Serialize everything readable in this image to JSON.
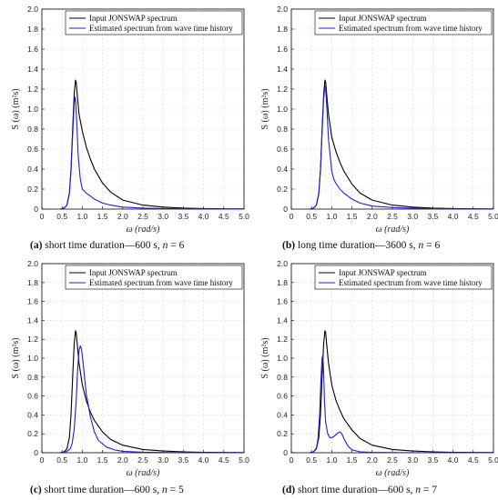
{
  "colors": {
    "input": "#000000",
    "estimated": "#1f1fd6",
    "grid": "#d9d9d9",
    "axis": "#000000"
  },
  "panels": [
    {
      "id": "a",
      "caption": {
        "letter": "(a)",
        "text": "short time duration—600 s,",
        "n_label": "n",
        "n_value": "= 6"
      }
    },
    {
      "id": "b",
      "caption": {
        "letter": "(b)",
        "text": "long time duration—3600 s,",
        "n_label": "n",
        "n_value": "= 6"
      }
    },
    {
      "id": "c",
      "caption": {
        "letter": "(c)",
        "text": "short time duration—600 s,",
        "n_label": "n",
        "n_value": "= 5"
      }
    },
    {
      "id": "d",
      "caption": {
        "letter": "(d)",
        "text": "short time duration—600 s,",
        "n_label": "n",
        "n_value": "= 7"
      }
    }
  ],
  "chart_data": [
    {
      "type": "line",
      "panel": "a",
      "xlabel": "ω (rad/s)",
      "ylabel": "S (ω) (m²s)",
      "xlim": [
        0,
        5
      ],
      "ylim": [
        0,
        2
      ],
      "xticks": [
        "0",
        "0.5",
        "1.0",
        "1.5",
        "2.0",
        "2.5",
        "3.0",
        "3.5",
        "4.0",
        "4.5",
        "5.0"
      ],
      "yticks": [
        "0",
        "0.2",
        "0.4",
        "0.6",
        "0.8",
        "1.0",
        "1.2",
        "1.4",
        "1.6",
        "1.8",
        "2.0"
      ],
      "grid": true,
      "legend_position": "top-right",
      "series": [
        {
          "name": "Input JONSWAP spectrum",
          "color": "#000000",
          "x": [
            0.45,
            0.55,
            0.62,
            0.68,
            0.72,
            0.76,
            0.8,
            0.83,
            0.85,
            0.88,
            0.92,
            1.0,
            1.1,
            1.2,
            1.3,
            1.5,
            1.7,
            2.0,
            2.5,
            3.0,
            3.5,
            4.0,
            4.5,
            5.0
          ],
          "y": [
            0,
            0.01,
            0.04,
            0.16,
            0.4,
            0.78,
            1.15,
            1.29,
            1.27,
            1.12,
            0.95,
            0.78,
            0.62,
            0.5,
            0.4,
            0.26,
            0.17,
            0.09,
            0.04,
            0.02,
            0.01,
            0.005,
            0.003,
            0.002
          ]
        },
        {
          "name": "Estimated spectrum from wave time history",
          "color": "#1f1fd6",
          "x": [
            0.45,
            0.55,
            0.62,
            0.68,
            0.72,
            0.76,
            0.8,
            0.82,
            0.84,
            0.87,
            0.9,
            0.95,
            1.0,
            1.1,
            1.2,
            1.3,
            1.5,
            1.7,
            2.0,
            2.5,
            3.0,
            3.5,
            4.0,
            4.5,
            5.0
          ],
          "y": [
            0,
            0.01,
            0.04,
            0.15,
            0.38,
            0.72,
            1.05,
            1.12,
            1.06,
            0.8,
            0.52,
            0.3,
            0.2,
            0.16,
            0.13,
            0.1,
            0.06,
            0.04,
            0.02,
            0.01,
            0.005,
            0.003,
            0.002,
            0.001,
            0.001
          ]
        }
      ]
    },
    {
      "type": "line",
      "panel": "b",
      "xlabel": "ω (rad/s)",
      "ylabel": "S (ω) (m²s)",
      "xlim": [
        0,
        5
      ],
      "ylim": [
        0,
        2
      ],
      "xticks": [
        "0",
        "0.5",
        "1.0",
        "1.5",
        "2.0",
        "2.5",
        "3.0",
        "3.5",
        "4.0",
        "4.5",
        "5.0"
      ],
      "yticks": [
        "0",
        "0.2",
        "0.4",
        "0.6",
        "0.8",
        "1.0",
        "1.2",
        "1.4",
        "1.6",
        "1.8",
        "2.0"
      ],
      "grid": true,
      "legend_position": "top-right",
      "series": [
        {
          "name": "Input JONSWAP spectrum",
          "color": "#000000",
          "x": [
            0.45,
            0.55,
            0.62,
            0.68,
            0.72,
            0.76,
            0.8,
            0.83,
            0.85,
            0.88,
            0.92,
            1.0,
            1.1,
            1.2,
            1.3,
            1.5,
            1.7,
            2.0,
            2.5,
            3.0,
            3.5,
            4.0,
            4.5,
            5.0
          ],
          "y": [
            0,
            0.01,
            0.04,
            0.16,
            0.4,
            0.78,
            1.15,
            1.29,
            1.27,
            1.12,
            0.95,
            0.72,
            0.58,
            0.47,
            0.38,
            0.25,
            0.16,
            0.09,
            0.04,
            0.02,
            0.01,
            0.005,
            0.003,
            0.002
          ]
        },
        {
          "name": "Estimated spectrum from wave time history",
          "color": "#1f1fd6",
          "x": [
            0.45,
            0.55,
            0.62,
            0.68,
            0.72,
            0.76,
            0.8,
            0.83,
            0.85,
            0.88,
            0.92,
            1.0,
            1.05,
            1.1,
            1.2,
            1.3,
            1.5,
            1.7,
            2.0,
            2.5,
            3.0,
            3.5,
            4.0,
            4.5,
            5.0
          ],
          "y": [
            0,
            0.01,
            0.04,
            0.15,
            0.38,
            0.75,
            1.1,
            1.23,
            1.2,
            1.0,
            0.7,
            0.38,
            0.3,
            0.26,
            0.2,
            0.16,
            0.1,
            0.06,
            0.03,
            0.015,
            0.008,
            0.004,
            0.002,
            0.001,
            0.001
          ]
        }
      ]
    },
    {
      "type": "line",
      "panel": "c",
      "xlabel": "ω (rad/s)",
      "ylabel": "S (ω) (m²s)",
      "xlim": [
        0,
        5
      ],
      "ylim": [
        0,
        2
      ],
      "xticks": [
        "0",
        "0.5",
        "1.0",
        "1.5",
        "2.0",
        "2.5",
        "3.0",
        "3.5",
        "4.0",
        "4.5",
        "5.0"
      ],
      "yticks": [
        "0",
        "0.2",
        "0.4",
        "0.6",
        "0.8",
        "1.0",
        "1.2",
        "1.4",
        "1.6",
        "1.8",
        "2.0"
      ],
      "grid": true,
      "legend_position": "top-right",
      "series": [
        {
          "name": "Input JONSWAP spectrum",
          "color": "#000000",
          "x": [
            0.45,
            0.55,
            0.62,
            0.68,
            0.72,
            0.76,
            0.8,
            0.83,
            0.85,
            0.88,
            0.92,
            1.0,
            1.1,
            1.2,
            1.3,
            1.5,
            1.7,
            2.0,
            2.5,
            3.0,
            3.5,
            4.0,
            4.5,
            5.0
          ],
          "y": [
            0,
            0.01,
            0.04,
            0.16,
            0.4,
            0.78,
            1.15,
            1.29,
            1.27,
            1.12,
            0.95,
            0.72,
            0.55,
            0.43,
            0.34,
            0.22,
            0.14,
            0.08,
            0.035,
            0.018,
            0.01,
            0.005,
            0.003,
            0.002
          ]
        },
        {
          "name": "Estimated spectrum from wave time history",
          "color": "#1f1fd6",
          "x": [
            0.5,
            0.6,
            0.7,
            0.75,
            0.8,
            0.85,
            0.88,
            0.92,
            0.95,
            0.98,
            1.02,
            1.06,
            1.1,
            1.2,
            1.3,
            1.4,
            1.6,
            1.8,
            2.0,
            2.5,
            3.0,
            3.5,
            4.0,
            4.5,
            5.0
          ],
          "y": [
            0,
            0.01,
            0.04,
            0.1,
            0.25,
            0.55,
            0.85,
            1.08,
            1.13,
            1.1,
            0.95,
            0.78,
            0.62,
            0.38,
            0.22,
            0.13,
            0.06,
            0.03,
            0.015,
            0.006,
            0.003,
            0.002,
            0.001,
            0.001,
            0.001
          ]
        }
      ]
    },
    {
      "type": "line",
      "panel": "d",
      "xlabel": "ω (rad/s)",
      "ylabel": "S (ω) (m²s)",
      "xlim": [
        0,
        5
      ],
      "ylim": [
        0,
        2
      ],
      "xticks": [
        "0",
        "0.5",
        "1.0",
        "1.5",
        "2.0",
        "2.5",
        "3.0",
        "3.5",
        "4.0",
        "4.5",
        "5.0"
      ],
      "yticks": [
        "0",
        "0.2",
        "0.4",
        "0.6",
        "0.8",
        "1.0",
        "1.2",
        "1.4",
        "1.6",
        "1.8",
        "2.0"
      ],
      "grid": true,
      "legend_position": "top-right",
      "series": [
        {
          "name": "Input JONSWAP spectrum",
          "color": "#000000",
          "x": [
            0.45,
            0.55,
            0.62,
            0.68,
            0.72,
            0.76,
            0.8,
            0.83,
            0.85,
            0.88,
            0.92,
            1.0,
            1.1,
            1.2,
            1.3,
            1.5,
            1.7,
            2.0,
            2.5,
            3.0,
            3.5,
            4.0,
            4.5,
            5.0
          ],
          "y": [
            0,
            0.01,
            0.04,
            0.16,
            0.4,
            0.78,
            1.15,
            1.29,
            1.27,
            1.12,
            0.95,
            0.72,
            0.56,
            0.45,
            0.36,
            0.24,
            0.15,
            0.08,
            0.035,
            0.018,
            0.01,
            0.005,
            0.003,
            0.002
          ]
        },
        {
          "name": "Estimated spectrum from wave time history",
          "color": "#1f1fd6",
          "x": [
            0.45,
            0.55,
            0.62,
            0.66,
            0.7,
            0.73,
            0.76,
            0.78,
            0.8,
            0.82,
            0.85,
            0.9,
            0.95,
            1.0,
            1.05,
            1.1,
            1.15,
            1.2,
            1.25,
            1.3,
            1.4,
            1.5,
            1.7,
            2.0,
            2.5,
            3.0,
            3.5,
            4.0,
            4.5,
            5.0
          ],
          "y": [
            0,
            0.01,
            0.05,
            0.15,
            0.4,
            0.75,
            1.0,
            1.03,
            0.85,
            0.55,
            0.32,
            0.2,
            0.16,
            0.16,
            0.17,
            0.19,
            0.21,
            0.22,
            0.2,
            0.15,
            0.07,
            0.03,
            0.01,
            0.005,
            0.002,
            0.001,
            0.001,
            0.001,
            0.001,
            0.001
          ]
        }
      ]
    }
  ]
}
